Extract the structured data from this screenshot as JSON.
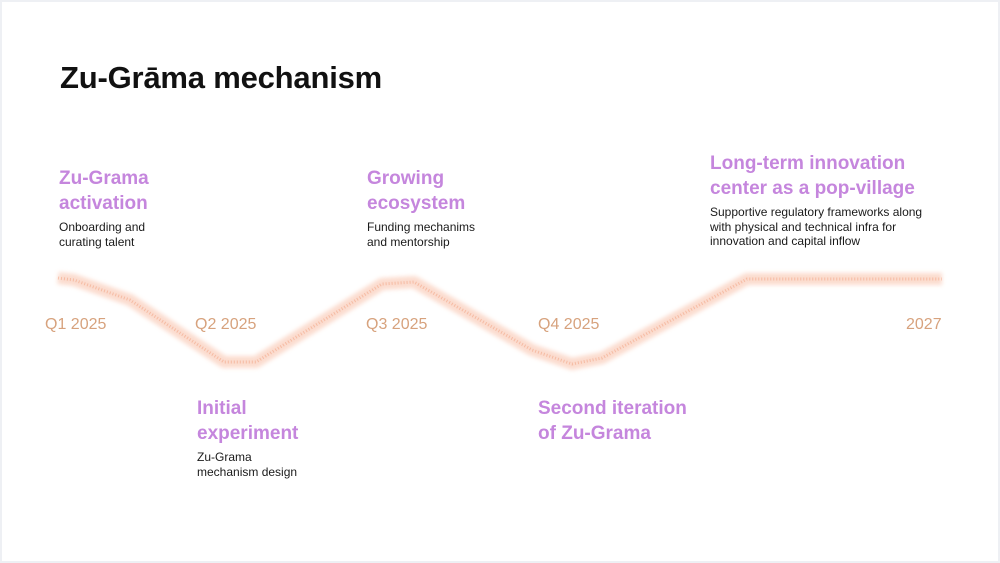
{
  "slide": {
    "title": "Zu-Grāma mechanism"
  },
  "timeline": {
    "line_color": "#f3a27f",
    "accent_color": "#c586dd",
    "label_color": "#d7a27d",
    "periods": [
      "Q1 2025",
      "Q2 2025",
      "Q3 2025",
      "Q4 2025",
      "2027"
    ],
    "milestones": [
      {
        "position": "above",
        "period": "Q1 2025",
        "title": "Zu-Grama\nactivation",
        "description": "Onboarding and\ncurating talent"
      },
      {
        "position": "below",
        "period": "Q2 2025",
        "title": "Initial\nexperiment",
        "description": "Zu-Grama\nmechanism design"
      },
      {
        "position": "above",
        "period": "Q3 2025",
        "title": "Growing\necosystem",
        "description": "Funding mechanims\nand mentorship"
      },
      {
        "position": "below",
        "period": "Q4 2025",
        "title": "Second iteration\nof Zu-Grama",
        "description": ""
      },
      {
        "position": "above",
        "period": "2027",
        "title": "Long-term innovation\ncenter as a pop-village",
        "description": "Supportive regulatory frameworks along\nwith physical and technical infra for\ninnovation and capital inflow"
      }
    ]
  }
}
